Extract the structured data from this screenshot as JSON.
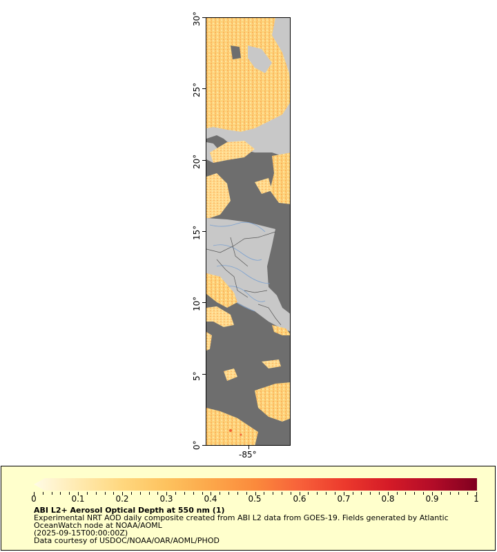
{
  "map": {
    "y_axis": {
      "ticks": [
        {
          "value": 30,
          "label": "30°"
        },
        {
          "value": 25,
          "label": "25°"
        },
        {
          "value": 20,
          "label": "20°"
        },
        {
          "value": 15,
          "label": "15°"
        },
        {
          "value": 10,
          "label": "10°"
        },
        {
          "value": 5,
          "label": "5°"
        },
        {
          "value": 0,
          "label": "0°"
        }
      ]
    },
    "x_axis": {
      "ticks": [
        {
          "value": -85,
          "label": "-85°"
        }
      ]
    },
    "colors": {
      "ocean": "#6e6e6e",
      "land": "#c8c8c8",
      "rivers": "#7aa0d0",
      "borders": "#555555"
    }
  },
  "legend": {
    "title": "ABI L2+ Aerosol Optical Depth at 550 nm (1)",
    "description_line1": "Experimental NRT AOD daily composite created from ABI L2 data from GOES-19. Fields generated by Atlantic",
    "description_line2": "OceanWatch node at NOAA/AOML",
    "date": "(2025-09-15T00:00:00Z)",
    "credit": "Data courtesy of USDOC/NOAA/OAR/AOML/PHOD",
    "colorbar": {
      "min": 0,
      "max": 1,
      "labels": [
        "0",
        "0.1",
        "0.2",
        "0.3",
        "0.4",
        "0.5",
        "0.6",
        "0.7",
        "0.8",
        "0.9",
        "1"
      ],
      "colors": [
        "#fffbe6",
        "#ffeab0",
        "#ffd77e",
        "#fdc25e",
        "#fca74a",
        "#fb8a3c",
        "#f7613a",
        "#ec3a2d",
        "#d51b27",
        "#b30c28",
        "#80001f"
      ]
    }
  }
}
